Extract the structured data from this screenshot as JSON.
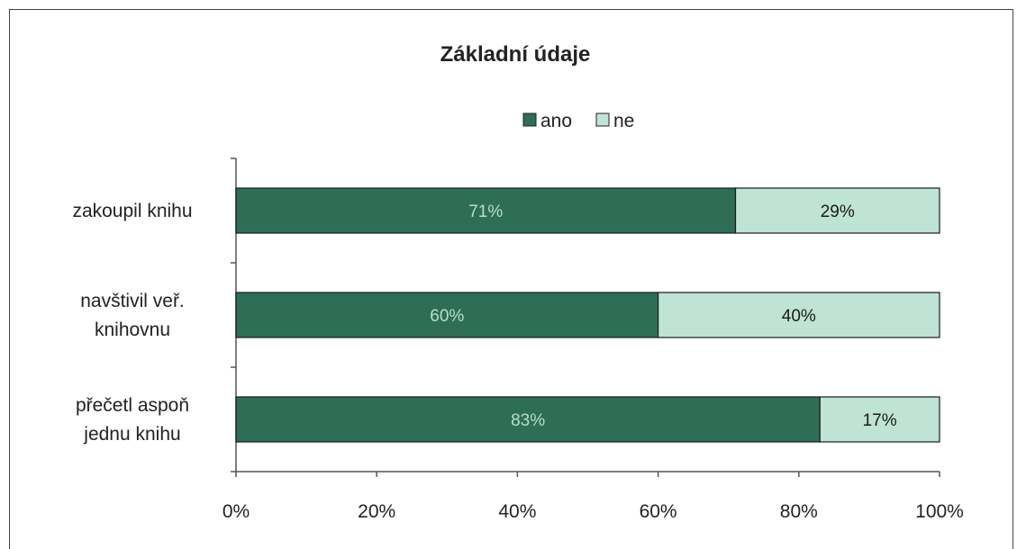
{
  "chart_data": {
    "type": "bar",
    "stacked": true,
    "percent": true,
    "orientation": "horizontal",
    "title": "Základní údaje",
    "categories": [
      [
        "zakoupil knihu"
      ],
      [
        "navštivil veř.",
        "knihovnu"
      ],
      [
        "přečetl aspoň",
        "jednu knihu"
      ]
    ],
    "series": [
      {
        "name": "ano",
        "values": [
          71,
          60,
          83
        ],
        "labels": [
          "71%",
          "60%",
          "83%"
        ],
        "color": "#2e6e56",
        "label_color": "#b9dccd"
      },
      {
        "name": "ne",
        "values": [
          29,
          40,
          17
        ],
        "labels": [
          "29%",
          "40%",
          "17%"
        ],
        "color": "#bfe3d4",
        "label_color": "#1a1a1a"
      }
    ],
    "xticks": [
      "0%",
      "20%",
      "40%",
      "60%",
      "80%",
      "100%"
    ],
    "xlim": [
      0,
      100
    ],
    "legend_position": "top",
    "grid": false
  }
}
